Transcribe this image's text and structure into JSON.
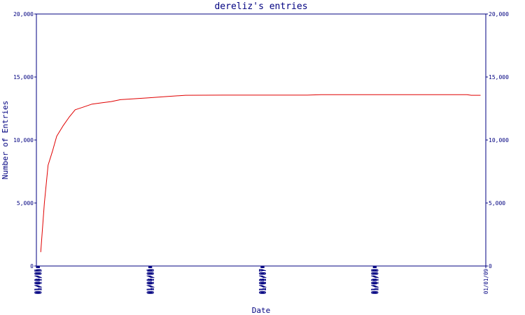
{
  "chart_data": {
    "type": "line",
    "title": "dereliz's entries",
    "xlabel": "Date",
    "ylabel": "Number of Entries",
    "colors": {
      "axis": "#000080",
      "line": "#e00000",
      "background": "#ffffff"
    },
    "x_ticks": [
      "01/01/05",
      "01/03/05",
      "01/05/05",
      "01/07/05",
      "01/09/05",
      "01/11/05",
      "01/01/06",
      "01/03/06",
      "01/05/06",
      "01/07/06",
      "01/09/06",
      "01/11/06",
      "01/01/07",
      "01/03/07",
      "01/05/07",
      "01/07/07",
      "01/09/07",
      "01/11/07",
      "01/01/08",
      "01/03/08",
      "01/05/08",
      "01/07/08",
      "01/09/08",
      "01/11/08",
      "01/01/09"
    ],
    "y_ticks": [
      "0",
      "5,000",
      "10,000",
      "15,000",
      "20,000"
    ],
    "ylim": [
      0,
      20000
    ],
    "xlim": [
      "01/01/05",
      "01/01/09"
    ],
    "right_axis": true,
    "grid": false,
    "series": [
      {
        "color": "#e00000",
        "points": [
          [
            "01/15/05",
            1100
          ],
          [
            "01/27/05",
            5000
          ],
          [
            "02/08/05",
            8000
          ],
          [
            "02/22/05",
            9100
          ],
          [
            "03/08/05",
            10300
          ],
          [
            "03/28/05",
            11100
          ],
          [
            "04/17/05",
            11800
          ],
          [
            "05/07/05",
            12400
          ],
          [
            "06/01/05",
            12600
          ],
          [
            "07/01/05",
            12850
          ],
          [
            "08/01/05",
            12950
          ],
          [
            "09/01/05",
            13050
          ],
          [
            "10/01/05",
            13200
          ],
          [
            "11/01/05",
            13250
          ],
          [
            "12/01/05",
            13300
          ],
          [
            "01/01/06",
            13350
          ],
          [
            "03/01/06",
            13450
          ],
          [
            "05/01/06",
            13550
          ],
          [
            "09/01/06",
            13560
          ],
          [
            "01/01/07",
            13560
          ],
          [
            "06/01/07",
            13560
          ],
          [
            "07/15/07",
            13600
          ],
          [
            "01/01/08",
            13600
          ],
          [
            "07/01/08",
            13600
          ],
          [
            "11/01/08",
            13600
          ],
          [
            "11/15/08",
            13550
          ],
          [
            "12/15/08",
            13550
          ]
        ]
      }
    ]
  }
}
